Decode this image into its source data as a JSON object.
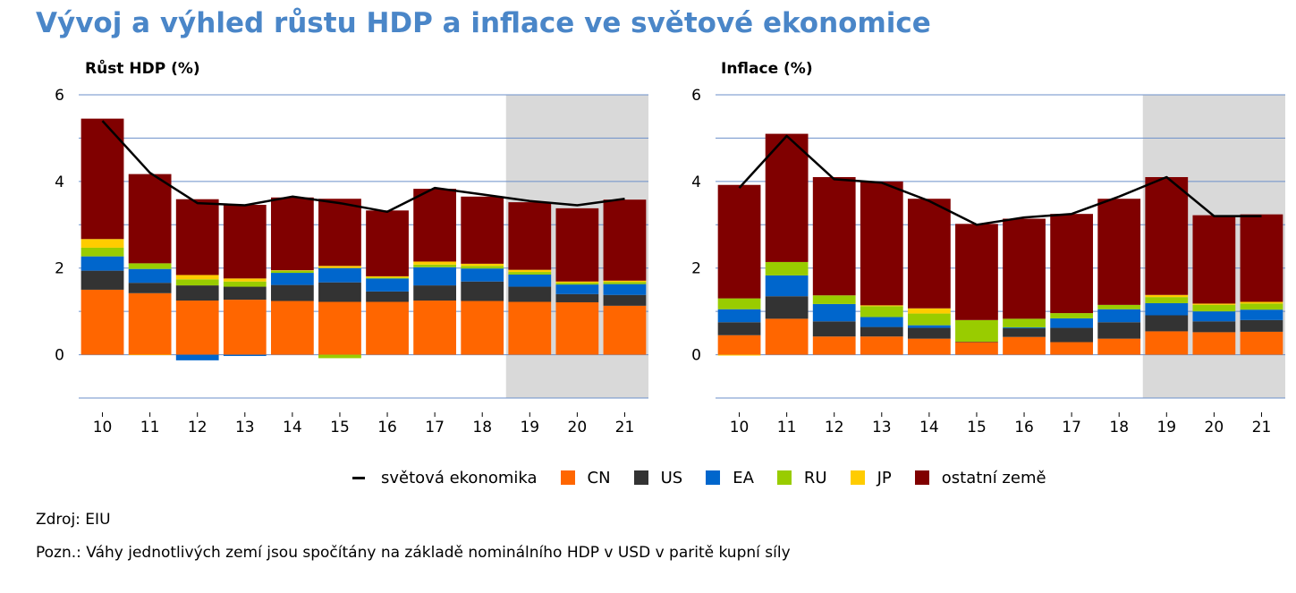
{
  "title": "Vývoj a výhled růstu HDP a inflace ve světové ekonomice",
  "colors": {
    "CN": "#ff6600",
    "US": "#333333",
    "EA": "#0066cc",
    "RU": "#99cc00",
    "JP": "#ffcc00",
    "other": "#800000",
    "line": "#000000",
    "forecast_band": "#d9d9d9",
    "grid": "#6b8fc9",
    "title": "#4a86c8"
  },
  "legend": [
    {
      "label": "světová ekonomika",
      "key": "line"
    },
    {
      "label": "CN",
      "key": "CN"
    },
    {
      "label": "US",
      "key": "US"
    },
    {
      "label": "EA",
      "key": "EA"
    },
    {
      "label": "RU",
      "key": "RU"
    },
    {
      "label": "JP",
      "key": "JP"
    },
    {
      "label": "ostatní země",
      "key": "other"
    }
  ],
  "source": "Zdroj: EIU",
  "footnote": "Pozn.: Váhy jednotlivých zemí jsou spočítány na základě nominálního HDP v USD v paritě kupní síly",
  "chart_data": [
    {
      "type": "bar",
      "stacked": true,
      "title": "Růst HDP (%)",
      "categories": [
        "10",
        "11",
        "12",
        "13",
        "14",
        "15",
        "16",
        "17",
        "18",
        "19",
        "20",
        "21"
      ],
      "ylim": [
        -1,
        6
      ],
      "yticks": [
        0,
        2,
        4,
        6
      ],
      "grid": true,
      "forecast_from": "19",
      "series": [
        {
          "name": "CN",
          "values": [
            1.5,
            1.42,
            1.25,
            1.27,
            1.24,
            1.22,
            1.22,
            1.25,
            1.24,
            1.22,
            1.21,
            1.13
          ]
        },
        {
          "name": "US",
          "values": [
            0.44,
            0.24,
            0.35,
            0.3,
            0.37,
            0.45,
            0.24,
            0.35,
            0.45,
            0.35,
            0.19,
            0.25
          ]
        },
        {
          "name": "EA",
          "values": [
            0.33,
            0.32,
            -0.13,
            -0.03,
            0.28,
            0.33,
            0.3,
            0.42,
            0.3,
            0.28,
            0.22,
            0.25
          ]
        },
        {
          "name": "RU",
          "values": [
            0.2,
            0.13,
            0.14,
            0.12,
            0.05,
            -0.08,
            0.02,
            0.06,
            0.06,
            0.06,
            0.04,
            0.05
          ]
        },
        {
          "name": "JP",
          "values": [
            0.2,
            -0.01,
            0.1,
            0.07,
            0.01,
            0.05,
            0.03,
            0.07,
            0.05,
            0.05,
            0.03,
            0.03
          ]
        },
        {
          "name": "ostatní země",
          "values": [
            2.78,
            2.06,
            1.75,
            1.7,
            1.68,
            1.55,
            1.52,
            1.68,
            1.55,
            1.56,
            1.69,
            1.87
          ]
        }
      ],
      "line": {
        "name": "světová ekonomika",
        "values": [
          5.4,
          4.2,
          3.5,
          3.45,
          3.65,
          3.5,
          3.3,
          3.85,
          3.7,
          3.55,
          3.45,
          3.6
        ]
      }
    },
    {
      "type": "bar",
      "stacked": true,
      "title": "Inflace (%)",
      "categories": [
        "10",
        "11",
        "12",
        "13",
        "14",
        "15",
        "16",
        "17",
        "18",
        "19",
        "20",
        "21"
      ],
      "ylim": [
        -1,
        6
      ],
      "yticks": [
        0,
        2,
        4,
        6
      ],
      "grid": true,
      "forecast_from": "19",
      "series": [
        {
          "name": "CN",
          "values": [
            0.45,
            0.83,
            0.42,
            0.42,
            0.37,
            0.29,
            0.41,
            0.29,
            0.37,
            0.54,
            0.52,
            0.53
          ]
        },
        {
          "name": "US",
          "values": [
            0.3,
            0.52,
            0.35,
            0.22,
            0.25,
            0.01,
            0.2,
            0.33,
            0.38,
            0.37,
            0.25,
            0.27
          ]
        },
        {
          "name": "EA",
          "values": [
            0.3,
            0.48,
            0.4,
            0.23,
            0.06,
            0.0,
            0.02,
            0.22,
            0.3,
            0.28,
            0.23,
            0.24
          ]
        },
        {
          "name": "RU",
          "values": [
            0.25,
            0.31,
            0.2,
            0.25,
            0.27,
            0.5,
            0.2,
            0.12,
            0.1,
            0.14,
            0.15,
            0.14
          ]
        },
        {
          "name": "JP",
          "values": [
            -0.02,
            0.0,
            0.0,
            0.02,
            0.12,
            0.0,
            0.0,
            0.0,
            0.0,
            0.05,
            0.03,
            0.04
          ]
        },
        {
          "name": "ostatní země",
          "values": [
            2.62,
            2.96,
            2.73,
            2.86,
            2.53,
            2.22,
            2.31,
            2.29,
            2.45,
            2.72,
            2.04,
            2.02
          ]
        }
      ],
      "line": {
        "name": "světová ekonomika",
        "values": [
          3.85,
          5.05,
          4.05,
          3.97,
          3.55,
          3.0,
          3.17,
          3.25,
          3.65,
          4.1,
          3.2,
          3.2
        ]
      }
    }
  ]
}
